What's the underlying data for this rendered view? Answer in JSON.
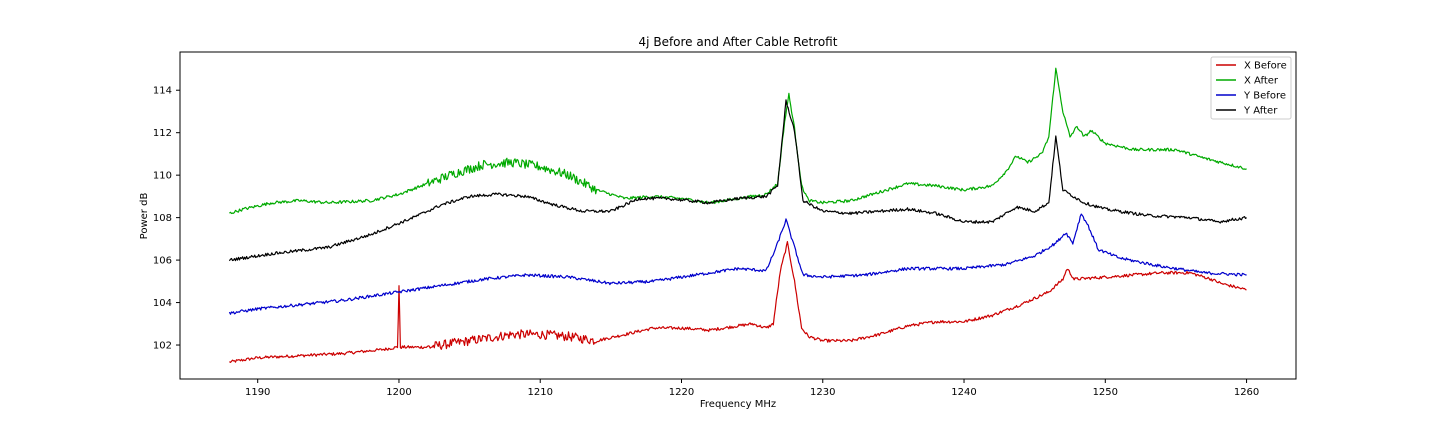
{
  "chart_data": {
    "type": "line",
    "title": "4j Before and After Cable Retrofit",
    "xlabel": "Frequency MHz",
    "ylabel": "Power dB",
    "xlim": [
      1184.5,
      1263.5
    ],
    "ylim": [
      100.4,
      115.8
    ],
    "xticks": [
      1190,
      1200,
      1210,
      1220,
      1230,
      1240,
      1250,
      1260
    ],
    "yticks": [
      102,
      104,
      106,
      108,
      110,
      112,
      114
    ],
    "grid": false,
    "legend_position": "top-right",
    "series": [
      {
        "name": "X Before",
        "color": "#cc0000",
        "points": [
          [
            1188,
            101.2
          ],
          [
            1190,
            101.4
          ],
          [
            1193,
            101.5
          ],
          [
            1196,
            101.6
          ],
          [
            1199,
            101.8
          ],
          [
            1199.9,
            101.9
          ],
          [
            1200,
            104.8
          ],
          [
            1200.1,
            101.9
          ],
          [
            1202,
            101.9
          ],
          [
            1204,
            102.1
          ],
          [
            1206,
            102.3
          ],
          [
            1208,
            102.5
          ],
          [
            1210,
            102.5
          ],
          [
            1212,
            102.4
          ],
          [
            1214,
            102.2
          ],
          [
            1216,
            102.5
          ],
          [
            1218,
            102.8
          ],
          [
            1220,
            102.8
          ],
          [
            1222,
            102.7
          ],
          [
            1224,
            102.9
          ],
          [
            1225,
            103.0
          ],
          [
            1226,
            102.8
          ],
          [
            1226.5,
            103.0
          ],
          [
            1227,
            105.5
          ],
          [
            1227.5,
            106.8
          ],
          [
            1228,
            105.0
          ],
          [
            1228.5,
            102.8
          ],
          [
            1229,
            102.4
          ],
          [
            1230,
            102.2
          ],
          [
            1232,
            102.2
          ],
          [
            1234,
            102.5
          ],
          [
            1236,
            102.9
          ],
          [
            1238,
            103.1
          ],
          [
            1240,
            103.1
          ],
          [
            1242,
            103.4
          ],
          [
            1244,
            103.9
          ],
          [
            1246,
            104.5
          ],
          [
            1247,
            105.1
          ],
          [
            1247.3,
            105.6
          ],
          [
            1247.8,
            105.1
          ],
          [
            1250,
            105.2
          ],
          [
            1252,
            105.3
          ],
          [
            1254,
            105.4
          ],
          [
            1256,
            105.4
          ],
          [
            1257.5,
            105.1
          ],
          [
            1258.2,
            104.9
          ],
          [
            1258.8,
            104.8
          ],
          [
            1260,
            104.6
          ]
        ]
      },
      {
        "name": "X After",
        "color": "#00aa00",
        "points": [
          [
            1188,
            108.2
          ],
          [
            1189,
            108.4
          ],
          [
            1191,
            108.7
          ],
          [
            1193,
            108.8
          ],
          [
            1195,
            108.7
          ],
          [
            1198,
            108.8
          ],
          [
            1200,
            109.1
          ],
          [
            1202,
            109.6
          ],
          [
            1204,
            110.1
          ],
          [
            1206,
            110.5
          ],
          [
            1208,
            110.6
          ],
          [
            1210,
            110.4
          ],
          [
            1212,
            110.0
          ],
          [
            1214,
            109.3
          ],
          [
            1216,
            108.9
          ],
          [
            1218,
            109.0
          ],
          [
            1220,
            108.9
          ],
          [
            1222,
            108.7
          ],
          [
            1224,
            108.9
          ],
          [
            1226,
            109.1
          ],
          [
            1226.8,
            109.6
          ],
          [
            1227.3,
            112.5
          ],
          [
            1227.6,
            113.8
          ],
          [
            1228,
            112.2
          ],
          [
            1228.5,
            109.5
          ],
          [
            1229,
            108.8
          ],
          [
            1230,
            108.7
          ],
          [
            1232,
            108.8
          ],
          [
            1234,
            109.2
          ],
          [
            1236,
            109.6
          ],
          [
            1238,
            109.5
          ],
          [
            1240,
            109.3
          ],
          [
            1242,
            109.5
          ],
          [
            1243,
            110.2
          ],
          [
            1243.7,
            110.9
          ],
          [
            1244.5,
            110.6
          ],
          [
            1245.5,
            111.0
          ],
          [
            1246,
            111.8
          ],
          [
            1246.5,
            115.0
          ],
          [
            1247,
            113.0
          ],
          [
            1247.5,
            111.8
          ],
          [
            1248,
            112.3
          ],
          [
            1248.5,
            111.8
          ],
          [
            1249,
            112.1
          ],
          [
            1250,
            111.5
          ],
          [
            1252,
            111.2
          ],
          [
            1255,
            111.2
          ],
          [
            1257,
            110.8
          ],
          [
            1260,
            110.3
          ]
        ]
      },
      {
        "name": "Y Before",
        "color": "#0000cc",
        "points": [
          [
            1188,
            103.5
          ],
          [
            1190,
            103.7
          ],
          [
            1193,
            103.9
          ],
          [
            1196,
            104.1
          ],
          [
            1199,
            104.4
          ],
          [
            1202,
            104.7
          ],
          [
            1206,
            105.1
          ],
          [
            1209,
            105.3
          ],
          [
            1212,
            105.2
          ],
          [
            1215,
            104.9
          ],
          [
            1218,
            105.0
          ],
          [
            1221,
            105.3
          ],
          [
            1224,
            105.6
          ],
          [
            1226,
            105.5
          ],
          [
            1226.7,
            106.6
          ],
          [
            1227.4,
            107.9
          ],
          [
            1228,
            106.6
          ],
          [
            1228.6,
            105.3
          ],
          [
            1230,
            105.2
          ],
          [
            1233,
            105.3
          ],
          [
            1236,
            105.6
          ],
          [
            1240,
            105.6
          ],
          [
            1243,
            105.8
          ],
          [
            1245,
            106.2
          ],
          [
            1246.5,
            106.8
          ],
          [
            1247.2,
            107.3
          ],
          [
            1247.7,
            106.8
          ],
          [
            1248.3,
            108.2
          ],
          [
            1248.8,
            107.6
          ],
          [
            1249.5,
            106.5
          ],
          [
            1251,
            106.1
          ],
          [
            1254,
            105.7
          ],
          [
            1257,
            105.4
          ],
          [
            1260,
            105.3
          ]
        ]
      },
      {
        "name": "Y After",
        "color": "#000000",
        "points": [
          [
            1188,
            106.0
          ],
          [
            1191,
            106.3
          ],
          [
            1195,
            106.6
          ],
          [
            1198,
            107.2
          ],
          [
            1201,
            108.0
          ],
          [
            1203,
            108.6
          ],
          [
            1205,
            109.0
          ],
          [
            1207,
            109.1
          ],
          [
            1209,
            109.0
          ],
          [
            1211,
            108.6
          ],
          [
            1213,
            108.3
          ],
          [
            1215,
            108.3
          ],
          [
            1217,
            108.9
          ],
          [
            1219,
            108.9
          ],
          [
            1222,
            108.7
          ],
          [
            1224,
            108.9
          ],
          [
            1226,
            109.0
          ],
          [
            1226.8,
            109.5
          ],
          [
            1227.4,
            113.5
          ],
          [
            1228,
            112.1
          ],
          [
            1228.6,
            108.8
          ],
          [
            1230,
            108.3
          ],
          [
            1232,
            108.2
          ],
          [
            1234,
            108.3
          ],
          [
            1236,
            108.4
          ],
          [
            1238,
            108.2
          ],
          [
            1240,
            107.8
          ],
          [
            1242,
            107.8
          ],
          [
            1243.7,
            108.5
          ],
          [
            1245,
            108.3
          ],
          [
            1246,
            108.7
          ],
          [
            1246.5,
            111.8
          ],
          [
            1247,
            109.3
          ],
          [
            1248.5,
            108.7
          ],
          [
            1250,
            108.4
          ],
          [
            1253,
            108.1
          ],
          [
            1256,
            108.0
          ],
          [
            1258,
            107.8
          ],
          [
            1260,
            108.0
          ]
        ]
      }
    ]
  }
}
